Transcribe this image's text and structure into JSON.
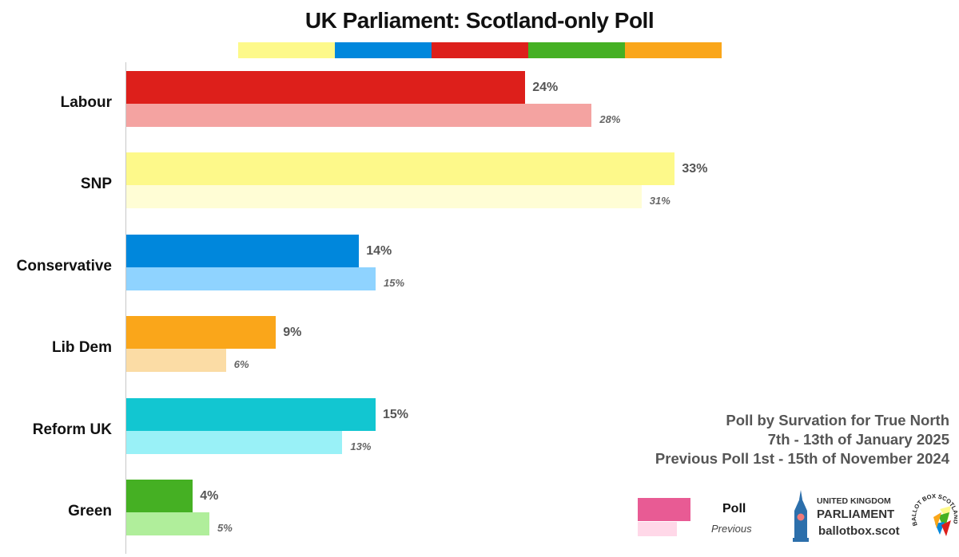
{
  "chart_data": {
    "type": "bar",
    "orientation": "horizontal",
    "title": "UK Parliament: Scotland-only Poll",
    "categories": [
      "Labour",
      "SNP",
      "Conservative",
      "Lib Dem",
      "Reform UK",
      "Green"
    ],
    "series": [
      {
        "name": "Poll",
        "values": [
          24,
          33,
          14,
          9,
          15,
          4
        ]
      },
      {
        "name": "Previous",
        "values": [
          28,
          31,
          15,
          6,
          13,
          5
        ]
      }
    ],
    "value_suffix": "%",
    "xlim": [
      0,
      33
    ],
    "colors": {
      "Labour": {
        "poll": "#dd1f1b",
        "previous": "#f4a3a1"
      },
      "SNP": {
        "poll": "#fdf98a",
        "previous": "#fffdd5"
      },
      "Conservative": {
        "poll": "#0087dc",
        "previous": "#8fd3ff"
      },
      "Lib Dem": {
        "poll": "#faa61a",
        "previous": "#fbdca5"
      },
      "Reform UK": {
        "poll": "#12c6d1",
        "previous": "#99f1f7"
      },
      "Green": {
        "poll": "#45b023",
        "previous": "#b0ee9b"
      }
    },
    "header_strip_colors": [
      "#fdf98a",
      "#0087dc",
      "#dd1f1b",
      "#45b023",
      "#faa61a"
    ]
  },
  "info": {
    "line1": "Poll by Survation for True North",
    "line2": "7th - 13th of January 2025",
    "line3": "Previous Poll 1st - 15th of November 2024"
  },
  "legend": {
    "poll_label": "Poll",
    "previous_label": "Previous",
    "poll_color": "#e85b94",
    "previous_color": "#ffd8e8"
  },
  "branding": {
    "line1": "UNITED KINGDOM",
    "line2": "PARLIAMENT",
    "line3": "ballotbox.scot",
    "badge_text": "BALLOT BOX SCOTLAND"
  }
}
